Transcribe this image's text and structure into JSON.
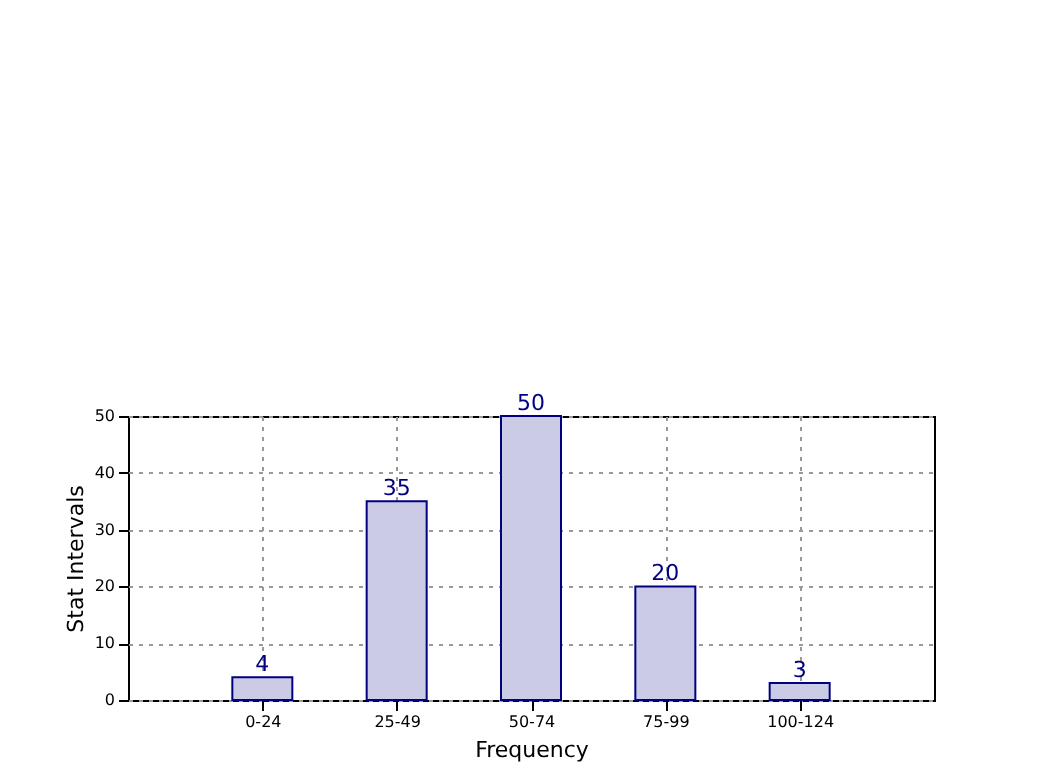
{
  "chart_data": {
    "type": "bar",
    "xlabel": "Frequency",
    "ylabel": "Stat Intervals",
    "categories": [
      "0-24",
      "25-49",
      "50-74",
      "75-99",
      "100-124"
    ],
    "values": [
      4,
      35,
      50,
      20,
      3
    ],
    "color": "#cbcbe6",
    "ylim": [
      0,
      50
    ],
    "yticks": [
      0,
      10,
      20,
      30,
      40,
      50
    ],
    "grid": true,
    "data_labels": true
  }
}
